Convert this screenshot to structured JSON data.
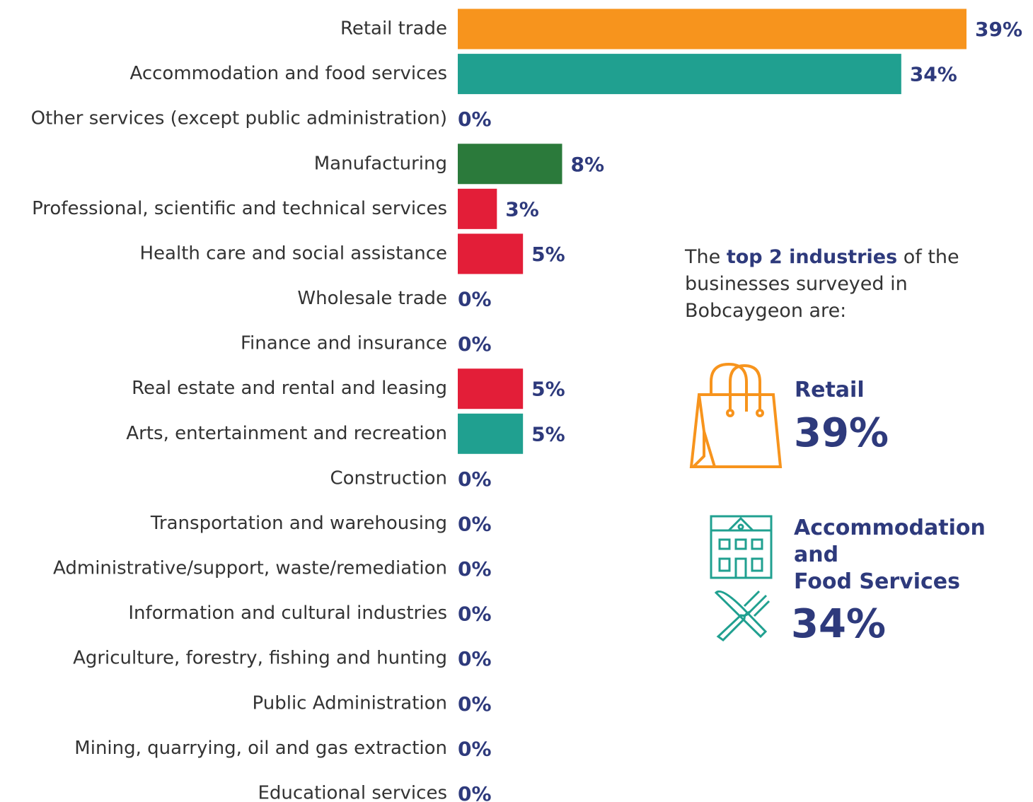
{
  "chart_data": {
    "type": "bar",
    "orientation": "horizontal",
    "categories": [
      "Retail trade",
      "Accommodation and food services",
      "Other services (except public administration)",
      "Manufacturing",
      "Professional, scientific and technical services",
      "Health care and social assistance",
      "Wholesale trade",
      "Finance and insurance",
      "Real estate and rental and leasing",
      "Arts, entertainment and recreation",
      "Construction",
      "Transportation and warehousing",
      "Administrative/support, waste/remediation",
      "Information and cultural industries",
      "Agriculture, forestry, fishing and hunting",
      "Public Administration",
      "Mining, quarrying, oil and gas extraction",
      "Educational services"
    ],
    "values": [
      39,
      34,
      0,
      8,
      3,
      5,
      0,
      0,
      5,
      5,
      0,
      0,
      0,
      0,
      0,
      0,
      0,
      0
    ],
    "value_labels": [
      "39%",
      "34%",
      "0%",
      "8%",
      "3%",
      "5%",
      "0%",
      "0%",
      "5%",
      "5%",
      "0%",
      "0%",
      "0%",
      "0%",
      "0%",
      "0%",
      "0%",
      "0%"
    ],
    "colors": [
      "#f7941d",
      "#20a090",
      "#20a090",
      "#2b7a3b",
      "#e31e38",
      "#e31e38",
      "#e31e38",
      "#e31e38",
      "#e31e38",
      "#20a090",
      "#20a090",
      "#20a090",
      "#20a090",
      "#20a090",
      "#20a090",
      "#20a090",
      "#20a090",
      "#20a090"
    ]
  },
  "panel": {
    "intro": [
      "The ",
      "top 2 industries",
      " of the businesses surveyed in Bobcaygeon are:"
    ],
    "items": [
      {
        "label": [
          "Retail"
        ],
        "value_label": "39%"
      },
      {
        "label": [
          "Accommodation",
          "and",
          "Food Services"
        ],
        "value_label": "34%"
      }
    ]
  }
}
